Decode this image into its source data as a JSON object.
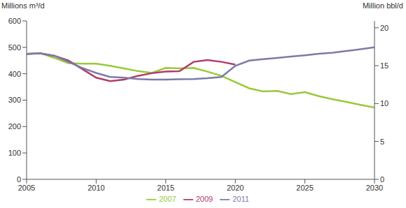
{
  "chart_data": {
    "type": "line",
    "y_label": "Millions m³/d",
    "y2_label": "Million bbl/d",
    "x": [
      2005,
      2006,
      2007,
      2008,
      2009,
      2010,
      2011,
      2012,
      2013,
      2014,
      2015,
      2016,
      2017,
      2018,
      2019,
      2020,
      2021,
      2022,
      2023,
      2024,
      2025,
      2026,
      2027,
      2028,
      2029,
      2030
    ],
    "xlim": [
      2005,
      2030
    ],
    "xticks": [
      2005,
      2010,
      2015,
      2020,
      2025,
      2030
    ],
    "ylim": [
      0,
      600
    ],
    "yticks": [
      0,
      100,
      200,
      300,
      400,
      500,
      600
    ],
    "y2lim": [
      0,
      20.9
    ],
    "y2ticks": [
      0,
      5,
      10,
      15,
      20
    ],
    "grid": false,
    "legend": "bottom",
    "series": [
      {
        "name": "2007",
        "color": "#99c93a",
        "values": [
          475,
          478,
          460,
          440,
          438,
          438,
          430,
          420,
          410,
          403,
          422,
          420,
          422,
          408,
          392,
          368,
          345,
          333,
          335,
          323,
          330,
          315,
          303,
          293,
          282,
          272
        ]
      },
      {
        "name": "2009",
        "color": "#b23a6c",
        "values": [
          475,
          477,
          468,
          450,
          418,
          385,
          372,
          378,
          392,
          402,
          408,
          410,
          445,
          452,
          445,
          435,
          null,
          null,
          null,
          null,
          null,
          null,
          null,
          null,
          null,
          null
        ]
      },
      {
        "name": "2011",
        "color": "#7b7ba8",
        "values": [
          475,
          477,
          468,
          445,
          422,
          403,
          388,
          385,
          380,
          378,
          378,
          379,
          380,
          383,
          388,
          430,
          450,
          455,
          460,
          465,
          470,
          476,
          480,
          486,
          493,
          500
        ]
      }
    ]
  }
}
